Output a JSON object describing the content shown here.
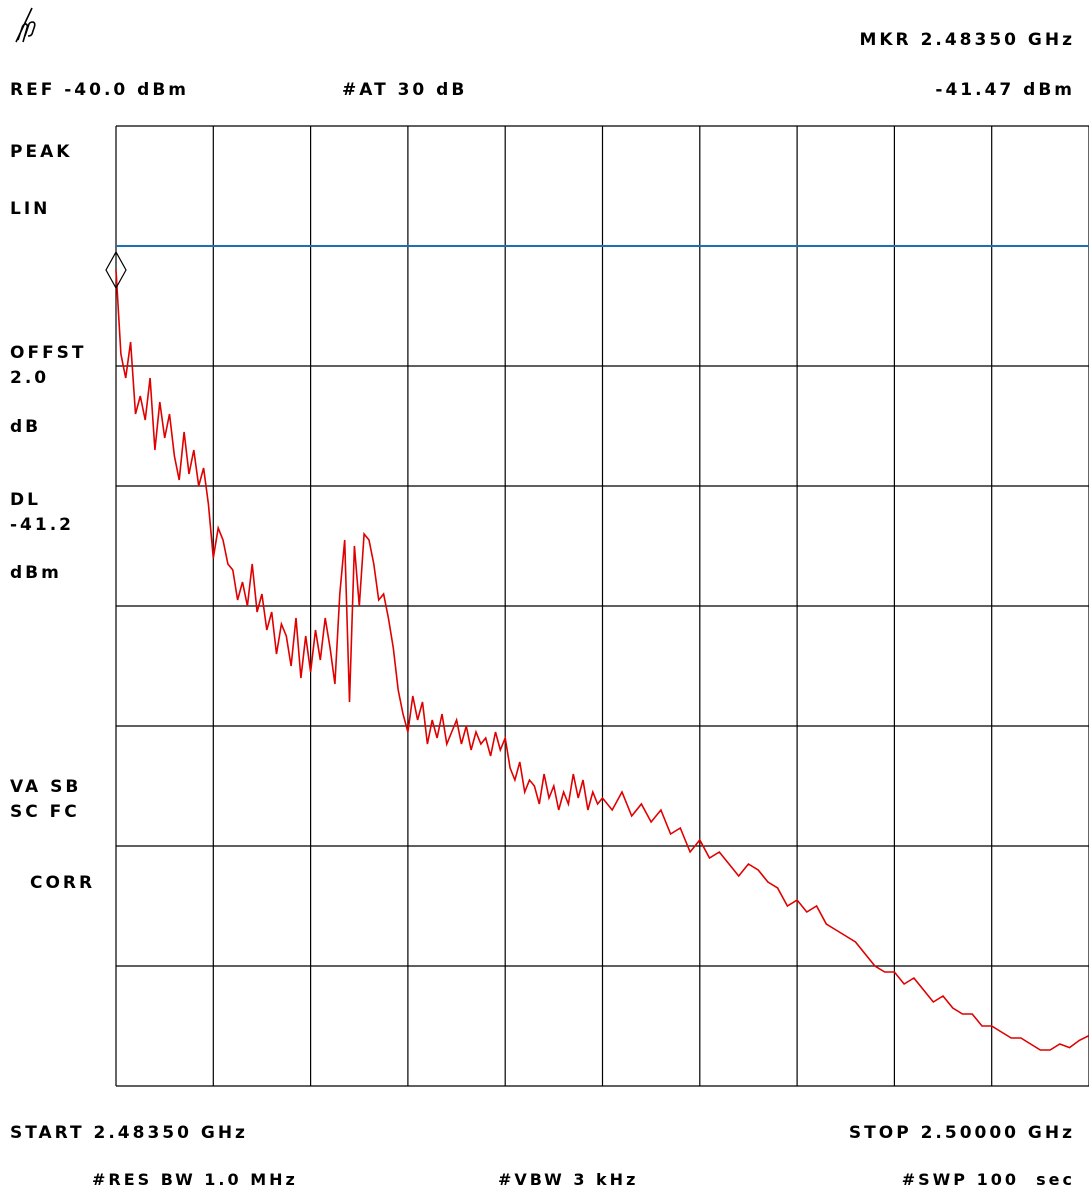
{
  "header": {
    "marker_freq": "MKR 2.48350 GHz",
    "ref_level": "REF -40.0 dBm",
    "attenuation": "#AT 30 dB",
    "marker_amplitude": "-41.47 dBm"
  },
  "side_labels": {
    "detector": "PEAK",
    "scale": "LIN",
    "offset_label": "OFFST",
    "offset_value": "2.0",
    "offset_unit": "dB",
    "display_line_label": "DL",
    "display_line_value": "-41.2",
    "display_line_unit": "dBm",
    "status_1": "VA SB",
    "status_2": "SC FC",
    "correction": "CORR"
  },
  "footer": {
    "start": "START 2.48350 GHz",
    "stop": "STOP 2.50000 GHz",
    "res_bw": "#RES BW 1.0 MHz",
    "vbw": "#VBW 3 kHz",
    "sweep": "#SWP 100  sec"
  },
  "colors": {
    "trace": "#e00000",
    "display_line": "#1f6fb5",
    "grid": "#000000"
  },
  "chart_data": {
    "type": "line",
    "x_range_ghz": [
      2.4835,
      2.5
    ],
    "y_range_divisions": [
      0,
      8
    ],
    "grid": true,
    "display_line_div": 7.0,
    "marker": {
      "x_ghz": 2.4835,
      "y_div": 6.8
    },
    "series": [
      {
        "x_div": [
          0.0,
          0.05,
          0.1,
          0.15,
          0.2,
          0.25,
          0.3,
          0.35,
          0.4,
          0.45,
          0.5,
          0.55,
          0.6,
          0.65,
          0.7,
          0.75,
          0.8,
          0.85,
          0.9,
          0.95,
          1.0,
          1.05,
          1.1,
          1.15,
          1.2,
          1.25,
          1.3,
          1.35,
          1.4,
          1.45,
          1.5,
          1.55,
          1.6,
          1.65,
          1.7,
          1.75,
          1.8,
          1.85,
          1.9,
          1.95,
          2.0,
          2.05,
          2.1,
          2.15,
          2.2,
          2.25,
          2.3,
          2.35,
          2.4,
          2.45,
          2.5,
          2.55,
          2.6,
          2.65,
          2.7,
          2.75,
          2.8,
          2.85,
          2.9,
          2.95,
          3.0,
          3.05,
          3.1,
          3.15,
          3.2,
          3.25,
          3.3,
          3.35,
          3.4,
          3.45,
          3.5,
          3.55,
          3.6,
          3.65,
          3.7,
          3.75,
          3.8,
          3.85,
          3.9,
          3.95,
          4.0,
          4.05,
          4.1,
          4.15,
          4.2,
          4.25,
          4.3,
          4.35,
          4.4,
          4.45,
          4.5,
          4.55,
          4.6,
          4.65,
          4.7,
          4.75,
          4.8,
          4.85,
          4.9,
          4.95,
          5.0,
          5.1,
          5.2,
          5.3,
          5.4,
          5.5,
          5.6,
          5.7,
          5.8,
          5.9,
          6.0,
          6.1,
          6.2,
          6.3,
          6.4,
          6.5,
          6.6,
          6.7,
          6.8,
          6.9,
          7.0,
          7.1,
          7.2,
          7.3,
          7.4,
          7.5,
          7.6,
          7.7,
          7.8,
          7.9,
          8.0,
          8.1,
          8.2,
          8.3,
          8.4,
          8.5,
          8.6,
          8.7,
          8.8,
          8.9,
          9.0,
          9.1,
          9.2,
          9.3,
          9.4,
          9.5,
          9.6,
          9.7,
          9.8,
          9.9,
          10.0
        ],
        "y_div": [
          6.8,
          6.1,
          5.9,
          6.2,
          5.6,
          5.75,
          5.55,
          5.9,
          5.3,
          5.7,
          5.4,
          5.6,
          5.25,
          5.05,
          5.45,
          5.1,
          5.3,
          5.0,
          5.15,
          4.85,
          4.4,
          4.65,
          4.55,
          4.35,
          4.3,
          4.05,
          4.2,
          4.0,
          4.35,
          3.95,
          4.1,
          3.8,
          3.95,
          3.6,
          3.85,
          3.75,
          3.5,
          3.9,
          3.4,
          3.75,
          3.45,
          3.8,
          3.55,
          3.9,
          3.65,
          3.35,
          4.1,
          4.55,
          3.2,
          4.5,
          4.0,
          4.6,
          4.55,
          4.35,
          4.05,
          4.1,
          3.9,
          3.65,
          3.3,
          3.1,
          2.95,
          3.25,
          3.05,
          3.2,
          2.85,
          3.05,
          2.9,
          3.1,
          2.85,
          2.95,
          3.05,
          2.85,
          3.0,
          2.8,
          2.95,
          2.85,
          2.9,
          2.75,
          2.95,
          2.8,
          2.9,
          2.65,
          2.55,
          2.7,
          2.45,
          2.55,
          2.5,
          2.35,
          2.6,
          2.4,
          2.5,
          2.3,
          2.45,
          2.35,
          2.6,
          2.4,
          2.55,
          2.3,
          2.45,
          2.35,
          2.4,
          2.3,
          2.45,
          2.25,
          2.35,
          2.2,
          2.3,
          2.1,
          2.15,
          1.95,
          2.05,
          1.9,
          1.95,
          1.85,
          1.75,
          1.85,
          1.8,
          1.7,
          1.65,
          1.5,
          1.55,
          1.45,
          1.5,
          1.35,
          1.3,
          1.25,
          1.2,
          1.1,
          1.0,
          0.95,
          0.95,
          0.85,
          0.9,
          0.8,
          0.7,
          0.75,
          0.65,
          0.6,
          0.6,
          0.5,
          0.5,
          0.45,
          0.4,
          0.4,
          0.35,
          0.3,
          0.3,
          0.35,
          0.32,
          0.38,
          0.42
        ]
      }
    ]
  }
}
